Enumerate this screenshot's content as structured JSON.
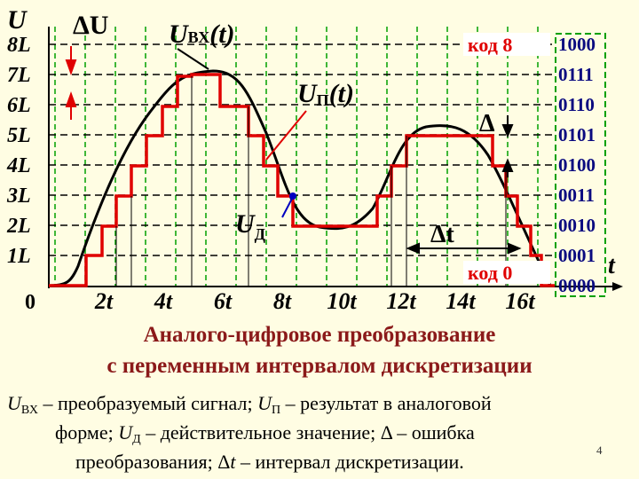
{
  "axis": {
    "y_label": "U",
    "delta_u": "ΔU",
    "y_ticks": [
      "8L",
      "7L",
      "6L",
      "5L",
      "4L",
      "3L",
      "2L",
      "1L"
    ],
    "origin": "0",
    "x_ticks": [
      "2t",
      "4t",
      "6t",
      "8t",
      "10t",
      "12t",
      "14t",
      "16t"
    ],
    "x_label": "t"
  },
  "signals": {
    "input": [
      "U",
      "ВХ",
      "(t)"
    ],
    "quantized": [
      "U",
      "П",
      "(t)"
    ],
    "actual": [
      "U",
      "Д"
    ],
    "error": "Δ",
    "interval": "Δt"
  },
  "codes": {
    "top_label": "код 8",
    "bottom_label": "код 0",
    "values": [
      "1000",
      "0111",
      "0110",
      "0101",
      "0100",
      "0011",
      "0010",
      "0001",
      "0000"
    ]
  },
  "title": [
    "Аналого-цифровое преобразование",
    "с переменным интервалом дискретизации"
  ],
  "caption": [
    [
      "U",
      "ВХ",
      " – преобразуемый сигнал; ",
      "U",
      "П",
      " – результат в аналоговой"
    ],
    [
      "форме; ",
      "U",
      "Д",
      " – действительное значение; Δ – ошибка"
    ],
    [
      "преобразования; Δ",
      "t",
      " – интервал дискретизации."
    ]
  ],
  "page_number": "4"
}
